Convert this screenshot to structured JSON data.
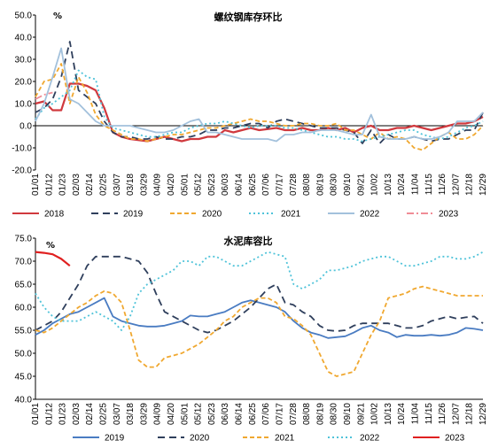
{
  "chart_data": [
    {
      "type": "line",
      "title": "螺纹钢库存环比",
      "unit": "%",
      "ylim": [
        -20,
        50
      ],
      "yticks": [
        "-20.0",
        "-10.0",
        "0.0",
        "10.0",
        "20.0",
        "30.0",
        "40.0",
        "50.0"
      ],
      "xticks": [
        "01/01",
        "01/12",
        "01/23",
        "02/03",
        "02/14",
        "02/25",
        "03/07",
        "03/18",
        "03/29",
        "04/09",
        "04/20",
        "05/01",
        "05/12",
        "05/23",
        "06/03",
        "06/14",
        "06/25",
        "07/06",
        "07/17",
        "07/28",
        "08/08",
        "08/19",
        "08/30",
        "09/10",
        "09/21",
        "10/02",
        "10/13",
        "10/24",
        "11/04",
        "11/15",
        "11/26",
        "12/07",
        "12/18",
        "12/29"
      ],
      "grid": false,
      "legend": "bottom",
      "x_days": [
        1,
        8,
        15,
        22,
        29,
        36,
        43,
        50,
        57,
        64,
        71,
        78,
        85,
        92,
        99,
        106,
        113,
        120,
        127,
        134,
        141,
        148,
        155,
        162,
        169,
        176,
        183,
        190,
        197,
        204,
        211,
        218,
        225,
        232,
        239,
        246,
        253,
        260,
        267,
        274,
        281,
        288,
        295,
        302,
        309,
        316,
        323,
        330,
        337,
        344,
        351,
        358,
        365
      ],
      "series": [
        {
          "name": "2018",
          "color": "#d0393e",
          "dash": "solid",
          "values": [
            10,
            11,
            7,
            7,
            19,
            19,
            18,
            16,
            8,
            -3,
            -5,
            -6,
            -6.5,
            -7,
            -6,
            -5,
            -6,
            -7,
            -6,
            -6,
            -5,
            -5,
            -2,
            -3,
            -2,
            -1,
            -2,
            -1.5,
            -1,
            -2,
            -2,
            -1,
            -2,
            -2,
            -1,
            -2,
            -1,
            -3,
            -1,
            0,
            -2,
            -2,
            -1,
            -1,
            0,
            -1,
            -2,
            -1,
            0,
            1,
            1,
            2,
            4
          ]
        },
        {
          "name": "2019",
          "color": "#2f3f5c",
          "dash": "8,5",
          "values": [
            6,
            8,
            12,
            22,
            38,
            16,
            13,
            10,
            2,
            -3,
            -5,
            -5,
            -6,
            -6,
            -5,
            -6,
            -6,
            -5,
            -5,
            -4,
            -2,
            -2,
            -1,
            -1,
            0,
            1,
            1,
            -1,
            2,
            3,
            2,
            1,
            0,
            -1,
            -1,
            -1,
            -2,
            -3,
            -8,
            -2,
            -8,
            -4,
            -6,
            -6,
            -5,
            -6,
            -7,
            -6,
            -6,
            -4,
            -2,
            -2,
            6
          ]
        },
        {
          "name": "2020",
          "color": "#f0a830",
          "dash": "5,3",
          "values": [
            13,
            20,
            21,
            28,
            10,
            22,
            15,
            5,
            0,
            -2,
            -4,
            -6,
            -6,
            -7,
            -6,
            -5,
            -4,
            -4,
            -3,
            -2,
            -1,
            -1,
            0,
            1,
            2,
            3,
            2,
            2,
            1,
            0,
            0,
            1,
            1,
            0,
            0,
            1,
            -2,
            -2,
            -4,
            -6,
            -3,
            -6,
            -5,
            -6,
            -10,
            -11,
            -8,
            -5,
            -3,
            -6,
            -6,
            -4,
            0
          ]
        },
        {
          "name": "2021",
          "color": "#4fc3d9",
          "dash": "2,3",
          "values": [
            3,
            8,
            10,
            13,
            16,
            25,
            22,
            21,
            4,
            -1,
            -2,
            -3,
            -4,
            -5,
            -5,
            -4,
            -3,
            -3,
            -1,
            0,
            1,
            1,
            2,
            1,
            0,
            -1,
            0,
            0,
            0,
            -1,
            -1,
            -2,
            -3,
            -4,
            -5,
            -5,
            -6,
            -6,
            -7,
            -6,
            -5,
            -4,
            -3,
            -2,
            -2,
            -4,
            -5,
            -6,
            -5,
            -3,
            -1,
            0,
            2
          ]
        },
        {
          "name": "2022",
          "color": "#a3c1dc",
          "dash": "solid",
          "values": [
            2,
            10,
            22,
            35,
            12,
            10,
            6,
            2,
            0,
            0,
            0,
            0,
            -1,
            -2,
            -3,
            -3,
            -2,
            0,
            2,
            3,
            -3,
            -3,
            -4,
            -5,
            -6,
            -6,
            -6,
            -6,
            -7,
            -4,
            -4,
            -3,
            -3,
            -2,
            -2,
            -2,
            -3,
            -4,
            -4,
            5,
            -5,
            -6,
            -6,
            -6,
            -5,
            -6,
            -6,
            -5,
            -3,
            2,
            2,
            2,
            6
          ]
        },
        {
          "name": "2023",
          "color": "#f08c96",
          "dash": "8,3,2,3",
          "values": [
            12,
            14,
            15,
            null,
            null,
            null,
            null,
            null,
            null,
            null,
            null,
            null,
            null,
            null,
            null,
            null,
            null,
            null,
            null,
            null,
            null,
            null,
            null,
            null,
            null,
            null,
            null,
            null,
            null,
            null,
            null,
            null,
            null,
            null,
            null,
            null,
            null,
            null,
            null,
            null,
            null,
            null,
            null,
            null,
            null,
            null,
            null,
            null,
            null,
            null,
            null,
            null,
            null
          ]
        }
      ]
    },
    {
      "type": "line",
      "title": "水泥库容比",
      "unit": "%",
      "ylim": [
        40,
        75
      ],
      "yticks": [
        "40.0",
        "45.0",
        "50.0",
        "55.0",
        "60.0",
        "65.0",
        "70.0",
        "75.0"
      ],
      "xticks": [
        "01/01",
        "01/12",
        "01/23",
        "02/03",
        "02/14",
        "02/25",
        "03/07",
        "03/18",
        "03/29",
        "04/09",
        "04/20",
        "05/01",
        "05/12",
        "05/23",
        "06/03",
        "06/14",
        "06/25",
        "07/06",
        "07/17",
        "07/28",
        "08/08",
        "08/19",
        "08/30",
        "09/10",
        "09/21",
        "10/02",
        "10/13",
        "10/24",
        "11/04",
        "11/15",
        "11/26",
        "12/07",
        "12/18",
        "12/29"
      ],
      "grid": false,
      "legend": "bottom",
      "x_days": [
        1,
        8,
        15,
        22,
        29,
        36,
        43,
        50,
        57,
        64,
        71,
        78,
        85,
        92,
        99,
        106,
        113,
        120,
        127,
        134,
        141,
        148,
        155,
        162,
        169,
        176,
        183,
        190,
        197,
        204,
        211,
        218,
        225,
        232,
        239,
        246,
        253,
        260,
        267,
        274,
        281,
        288,
        295,
        302,
        309,
        316,
        323,
        330,
        337,
        344,
        351,
        358,
        365
      ],
      "series": [
        {
          "name": "2019",
          "color": "#4a7cc2",
          "dash": "solid",
          "values": [
            54,
            55,
            56.5,
            57.5,
            58.5,
            59,
            60,
            61,
            62,
            58,
            57,
            56.5,
            56,
            55.8,
            55.8,
            56,
            56.5,
            57,
            58.2,
            58,
            58,
            58.5,
            59,
            60,
            61,
            61.5,
            61,
            60.5,
            60,
            59,
            57,
            55.5,
            54.5,
            54,
            53.3,
            53.5,
            53.7,
            54.5,
            55.5,
            56,
            55,
            54.5,
            53.5,
            54,
            53.8,
            53.8,
            54,
            53.8,
            54,
            54.5,
            55.5,
            55.3,
            55
          ]
        },
        {
          "name": "2020",
          "color": "#2f3f5c",
          "dash": "8,5",
          "values": [
            55,
            56,
            57,
            59,
            62,
            65,
            69,
            71,
            71,
            71,
            71,
            70.5,
            70,
            67.5,
            63,
            59,
            58,
            57,
            56,
            55,
            54.5,
            55,
            56,
            57,
            58.5,
            60,
            62,
            64,
            65,
            61,
            60.5,
            59,
            58,
            56,
            55,
            54.8,
            55,
            56,
            56.5,
            56.5,
            56.5,
            56.5,
            56,
            55.5,
            55.5,
            56,
            57,
            57.5,
            58,
            57.5,
            57.8,
            58,
            56.5
          ]
        },
        {
          "name": "2021",
          "color": "#f0a830",
          "dash": "5,3",
          "values": [
            55,
            54.5,
            55.5,
            57,
            58.5,
            60,
            61,
            62.5,
            63.5,
            63,
            61,
            55,
            48.5,
            47,
            47,
            49,
            49.5,
            50,
            51,
            52,
            53.5,
            55,
            57,
            58,
            60,
            61,
            62,
            62,
            61,
            58,
            57.5,
            56,
            54,
            50,
            46,
            45,
            45.5,
            46,
            50,
            54,
            57,
            62,
            62.5,
            63,
            64,
            64.5,
            64,
            63.5,
            63,
            62.5,
            62.5,
            62.5,
            62.5
          ]
        },
        {
          "name": "2022",
          "color": "#4fc3d9",
          "dash": "2,3",
          "values": [
            63,
            60,
            58,
            57,
            57,
            57,
            58,
            59,
            58,
            57,
            55,
            58,
            63,
            65,
            66,
            67,
            68,
            70,
            70,
            69,
            71,
            71,
            70,
            69,
            69,
            70,
            71,
            72,
            71.5,
            71,
            65,
            64,
            65,
            66,
            68,
            68,
            68.5,
            69,
            70,
            70.5,
            71,
            71,
            70,
            69,
            69,
            69.5,
            70,
            71,
            71,
            70.5,
            70.5,
            71,
            72
          ]
        },
        {
          "name": "2023",
          "color": "#e02020",
          "dash": "solid",
          "values": [
            72,
            71.8,
            71.5,
            70.5,
            69,
            null,
            null,
            null,
            null,
            null,
            null,
            null,
            null,
            null,
            null,
            null,
            null,
            null,
            null,
            null,
            null,
            null,
            null,
            null,
            null,
            null,
            null,
            null,
            null,
            null,
            null,
            null,
            null,
            null,
            null,
            null,
            null,
            null,
            null,
            null,
            null,
            null,
            null,
            null,
            null,
            null,
            null,
            null,
            null,
            null,
            null,
            null,
            null
          ]
        }
      ]
    }
  ]
}
